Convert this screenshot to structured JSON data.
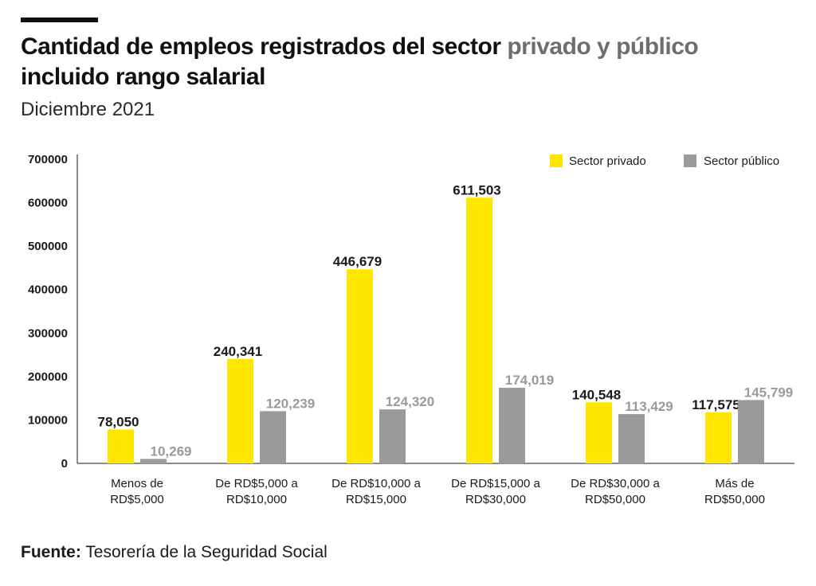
{
  "header": {
    "title_part1": "Cantidad de empleos registrados del sector ",
    "title_highlight": "privado y público",
    "title_part2": " incluido rango salarial",
    "subtitle": "Diciembre 2021"
  },
  "footer": {
    "source_label": "Fuente:",
    "source_text": " Tesorería de la Seguridad Social"
  },
  "colors": {
    "private": "#ffe600",
    "public": "#9a9a9a",
    "private_label": "#1a1a1a",
    "public_label": "#9a9a9a"
  },
  "chart_data": {
    "type": "bar",
    "title": "Cantidad de empleos registrados del sector privado y público incluido rango salarial",
    "subtitle": "Diciembre 2021",
    "xlabel": "",
    "ylabel": "",
    "ylim": [
      0,
      700000
    ],
    "yticks": [
      0,
      100000,
      200000,
      300000,
      400000,
      500000,
      600000,
      700000
    ],
    "ytick_labels": [
      "0",
      "100000",
      "200000",
      "300000",
      "400000",
      "500000",
      "600000",
      "700000"
    ],
    "grid": false,
    "legend_position": "top-right",
    "categories": [
      [
        "Menos de",
        "RD$5,000"
      ],
      [
        "De RD$5,000 a",
        "RD$10,000"
      ],
      [
        "De RD$10,000 a",
        "RD$15,000"
      ],
      [
        "De RD$15,000 a",
        "RD$30,000"
      ],
      [
        "De RD$30,000 a",
        "RD$50,000"
      ],
      [
        "Más de",
        "RD$50,000"
      ]
    ],
    "series": [
      {
        "name": "Sector privado",
        "values": [
          78050,
          240341,
          446679,
          611503,
          140548,
          117575
        ],
        "labels": [
          "78,050",
          "240,341",
          "446,679",
          "611,503",
          "140,548",
          "117,575"
        ]
      },
      {
        "name": "Sector público",
        "values": [
          10269,
          120239,
          124320,
          174019,
          113429,
          145799
        ],
        "labels": [
          "10,269",
          "120,239",
          "124,320",
          "174,019",
          "113,429",
          "145,799"
        ]
      }
    ]
  }
}
